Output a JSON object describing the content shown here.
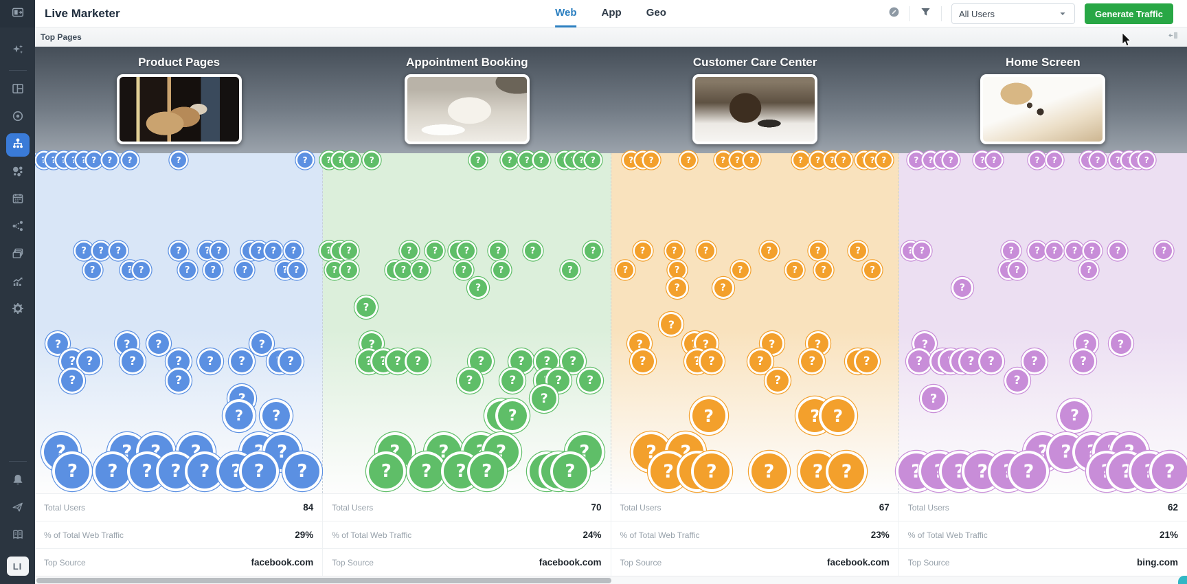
{
  "app": {
    "title": "Live Marketer"
  },
  "header": {
    "tabs": [
      {
        "label": "Web",
        "active": true
      },
      {
        "label": "App",
        "active": false
      },
      {
        "label": "Geo",
        "active": false
      }
    ],
    "tools": [
      {
        "name": "explore",
        "icon": "compass"
      },
      {
        "name": "filter",
        "icon": "funnel"
      }
    ],
    "user_filter": {
      "value": "All Users"
    },
    "generate_button": "Generate Traffic"
  },
  "subheader": {
    "title": "Top Pages"
  },
  "sidebar": {
    "logo_icon": "panel-toggle",
    "top_items": [
      {
        "name": "assistant",
        "icon": "sparkles"
      },
      {
        "name": "divider"
      },
      {
        "name": "dashboard",
        "icon": "dashboard"
      },
      {
        "name": "goals",
        "icon": "target"
      },
      {
        "name": "top-pages",
        "icon": "sitemap",
        "active": true
      },
      {
        "name": "segments",
        "icon": "bubbles"
      },
      {
        "name": "calendar",
        "icon": "calendar"
      },
      {
        "name": "funnels",
        "icon": "flow"
      },
      {
        "name": "reports",
        "icon": "layers"
      },
      {
        "name": "analytics",
        "icon": "chart"
      },
      {
        "name": "settings",
        "icon": "gear"
      }
    ],
    "bottom_items": [
      {
        "name": "divider"
      },
      {
        "name": "notifications",
        "icon": "bell"
      },
      {
        "name": "share",
        "icon": "send"
      },
      {
        "name": "docs",
        "icon": "book"
      }
    ],
    "logo_text": "LI"
  },
  "colors": {
    "accent_blue": "#2b7fc0",
    "button_green": "#28a745"
  },
  "columns": [
    {
      "title": "Product Pages",
      "thumb": "room-puppies",
      "color": "#5b90e2",
      "tint": "#d9e6f7",
      "stats": [
        {
          "label": "Total Users",
          "value": "84"
        },
        {
          "label": "% of Total Web Traffic",
          "value": "29%"
        },
        {
          "label": "Top Source",
          "value": "facebook.com"
        }
      ],
      "bubbles": [
        [
          3,
          10,
          11
        ],
        [
          6.5,
          10,
          11
        ],
        [
          10,
          10,
          11
        ],
        [
          13.5,
          10,
          11
        ],
        [
          17,
          10,
          11
        ],
        [
          20.5,
          10,
          11
        ],
        [
          26,
          10,
          11
        ],
        [
          33,
          10,
          11
        ],
        [
          50,
          10,
          11
        ],
        [
          94,
          10,
          11
        ],
        [
          17,
          142,
          12
        ],
        [
          23,
          142,
          12
        ],
        [
          29,
          142,
          12
        ],
        [
          50,
          142,
          12
        ],
        [
          60,
          142,
          12
        ],
        [
          64,
          142,
          12
        ],
        [
          75,
          142,
          12
        ],
        [
          78,
          142,
          12
        ],
        [
          83,
          142,
          12
        ],
        [
          90,
          142,
          12
        ],
        [
          20,
          170,
          12
        ],
        [
          33,
          170,
          12
        ],
        [
          37,
          170,
          12
        ],
        [
          53,
          170,
          12
        ],
        [
          62,
          170,
          12
        ],
        [
          73,
          170,
          12
        ],
        [
          87,
          170,
          12
        ],
        [
          91,
          170,
          12
        ],
        [
          8,
          277,
          15
        ],
        [
          32,
          277,
          15
        ],
        [
          43,
          277,
          15
        ],
        [
          79,
          277,
          15
        ],
        [
          13,
          303,
          16
        ],
        [
          19,
          303,
          16
        ],
        [
          34,
          303,
          16
        ],
        [
          50,
          303,
          16
        ],
        [
          61,
          303,
          16
        ],
        [
          72,
          303,
          16
        ],
        [
          85,
          303,
          16
        ],
        [
          89,
          303,
          16
        ],
        [
          13,
          331,
          16
        ],
        [
          50,
          331,
          16
        ],
        [
          72,
          357,
          18
        ],
        [
          71,
          382,
          20
        ],
        [
          84,
          382,
          20
        ],
        [
          9,
          435,
          25
        ],
        [
          32,
          435,
          25
        ],
        [
          42,
          435,
          25
        ],
        [
          56,
          435,
          25
        ],
        [
          78,
          435,
          25
        ],
        [
          86,
          435,
          25
        ],
        [
          13,
          463,
          25
        ],
        [
          27,
          463,
          25
        ],
        [
          39,
          463,
          25
        ],
        [
          49,
          463,
          25
        ],
        [
          59,
          463,
          25
        ],
        [
          70,
          463,
          25
        ],
        [
          78,
          463,
          25
        ],
        [
          93,
          463,
          25
        ]
      ]
    },
    {
      "title": "Appointment Booking",
      "thumb": "cat-plate",
      "color": "#5fbe68",
      "tint": "#dcefdb",
      "stats": [
        {
          "label": "Total Users",
          "value": "70"
        },
        {
          "label": "% of Total Web Traffic",
          "value": "24%"
        },
        {
          "label": "Top Source",
          "value": "facebook.com"
        }
      ],
      "bubbles": [
        [
          2,
          10,
          11
        ],
        [
          6,
          10,
          11
        ],
        [
          10,
          10,
          11
        ],
        [
          17,
          10,
          11
        ],
        [
          54,
          10,
          11
        ],
        [
          65,
          10,
          11
        ],
        [
          71,
          10,
          11
        ],
        [
          76,
          10,
          11
        ],
        [
          84,
          10,
          11
        ],
        [
          87,
          10,
          11
        ],
        [
          90,
          10,
          11
        ],
        [
          94,
          10,
          11
        ],
        [
          2,
          142,
          12
        ],
        [
          6,
          142,
          12
        ],
        [
          9,
          142,
          12
        ],
        [
          30,
          142,
          12
        ],
        [
          39,
          142,
          12
        ],
        [
          47,
          142,
          12
        ],
        [
          50,
          142,
          12
        ],
        [
          61,
          142,
          12
        ],
        [
          73,
          142,
          12
        ],
        [
          94,
          142,
          12
        ],
        [
          4,
          170,
          12
        ],
        [
          9,
          170,
          12
        ],
        [
          25,
          170,
          12
        ],
        [
          28,
          170,
          12
        ],
        [
          34,
          170,
          12
        ],
        [
          49,
          170,
          12
        ],
        [
          62,
          170,
          12
        ],
        [
          86,
          170,
          12
        ],
        [
          54,
          196,
          13
        ],
        [
          15,
          224,
          14
        ],
        [
          17,
          277,
          15
        ],
        [
          16,
          303,
          16
        ],
        [
          21,
          303,
          16
        ],
        [
          26,
          303,
          16
        ],
        [
          33,
          303,
          16
        ],
        [
          55,
          303,
          16
        ],
        [
          69,
          303,
          16
        ],
        [
          78,
          303,
          16
        ],
        [
          87,
          303,
          16
        ],
        [
          51,
          331,
          16
        ],
        [
          66,
          331,
          16
        ],
        [
          78,
          331,
          16
        ],
        [
          82,
          331,
          16
        ],
        [
          93,
          331,
          16
        ],
        [
          77,
          357,
          18
        ],
        [
          62,
          382,
          21
        ],
        [
          66,
          382,
          21
        ],
        [
          25,
          435,
          25
        ],
        [
          42,
          435,
          25
        ],
        [
          55,
          435,
          25
        ],
        [
          62,
          435,
          25
        ],
        [
          91,
          435,
          25
        ],
        [
          22,
          463,
          25
        ],
        [
          36,
          463,
          25
        ],
        [
          48,
          463,
          25
        ],
        [
          57,
          463,
          25
        ],
        [
          78,
          463,
          25
        ],
        [
          82,
          463,
          25
        ],
        [
          86,
          463,
          25
        ]
      ]
    },
    {
      "title": "Customer Care Center",
      "thumb": "dog-tablet",
      "color": "#f3a02c",
      "tint": "#f9e2bd",
      "stats": [
        {
          "label": "Total Users",
          "value": "67"
        },
        {
          "label": "% of Total Web Traffic",
          "value": "23%"
        },
        {
          "label": "Top Source",
          "value": "facebook.com"
        }
      ],
      "bubbles": [
        [
          7,
          10,
          11
        ],
        [
          11,
          10,
          11
        ],
        [
          14,
          10,
          11
        ],
        [
          27,
          10,
          11
        ],
        [
          39,
          10,
          11
        ],
        [
          44,
          10,
          11
        ],
        [
          49,
          10,
          11
        ],
        [
          66,
          10,
          11
        ],
        [
          72,
          10,
          11
        ],
        [
          77,
          10,
          11
        ],
        [
          81,
          10,
          11
        ],
        [
          88,
          10,
          11
        ],
        [
          91,
          10,
          11
        ],
        [
          95,
          10,
          11
        ],
        [
          11,
          142,
          12
        ],
        [
          22,
          142,
          12
        ],
        [
          33,
          142,
          12
        ],
        [
          55,
          142,
          12
        ],
        [
          72,
          142,
          12
        ],
        [
          86,
          142,
          12
        ],
        [
          5,
          170,
          12
        ],
        [
          23,
          170,
          12
        ],
        [
          45,
          170,
          12
        ],
        [
          64,
          170,
          12
        ],
        [
          74,
          170,
          12
        ],
        [
          91,
          170,
          12
        ],
        [
          23,
          196,
          13
        ],
        [
          39,
          196,
          13
        ],
        [
          21,
          249,
          15
        ],
        [
          10,
          277,
          15
        ],
        [
          29,
          277,
          15
        ],
        [
          33,
          277,
          15
        ],
        [
          56,
          277,
          15
        ],
        [
          72,
          277,
          15
        ],
        [
          11,
          303,
          16
        ],
        [
          30,
          303,
          16
        ],
        [
          35,
          303,
          16
        ],
        [
          52,
          303,
          16
        ],
        [
          70,
          303,
          16
        ],
        [
          86,
          303,
          16
        ],
        [
          89,
          303,
          16
        ],
        [
          58,
          331,
          16
        ],
        [
          34,
          382,
          24
        ],
        [
          71,
          382,
          24
        ],
        [
          79,
          382,
          24
        ],
        [
          14,
          435,
          26
        ],
        [
          26,
          435,
          26
        ],
        [
          20,
          463,
          26
        ],
        [
          30,
          463,
          26
        ],
        [
          35,
          463,
          26
        ],
        [
          55,
          463,
          26
        ],
        [
          72,
          463,
          26
        ],
        [
          82,
          463,
          26
        ]
      ]
    },
    {
      "title": "Home Screen",
      "thumb": "white-puppy",
      "color": "#c88dd8",
      "tint": "#ecdff2",
      "stats": [
        {
          "label": "Total Users",
          "value": "62"
        },
        {
          "label": "% of Total Web Traffic",
          "value": "21%"
        },
        {
          "label": "Top Source",
          "value": "bing.com"
        }
      ],
      "bubbles": [
        [
          6,
          10,
          11
        ],
        [
          11,
          10,
          11
        ],
        [
          15,
          10,
          11
        ],
        [
          18,
          10,
          11
        ],
        [
          29,
          10,
          11
        ],
        [
          33,
          10,
          11
        ],
        [
          48,
          10,
          11
        ],
        [
          54,
          10,
          11
        ],
        [
          66,
          10,
          11
        ],
        [
          69,
          10,
          11
        ],
        [
          76,
          10,
          11
        ],
        [
          80,
          10,
          11
        ],
        [
          83,
          10,
          11
        ],
        [
          86,
          10,
          11
        ],
        [
          4,
          142,
          12
        ],
        [
          8,
          142,
          12
        ],
        [
          39,
          142,
          12
        ],
        [
          48,
          142,
          12
        ],
        [
          54,
          142,
          12
        ],
        [
          61,
          142,
          12
        ],
        [
          67,
          142,
          12
        ],
        [
          76,
          142,
          12
        ],
        [
          92,
          142,
          12
        ],
        [
          38,
          170,
          12
        ],
        [
          41,
          170,
          12
        ],
        [
          66,
          170,
          12
        ],
        [
          22,
          196,
          13
        ],
        [
          9,
          277,
          15
        ],
        [
          65,
          277,
          15
        ],
        [
          77,
          277,
          15
        ],
        [
          7,
          303,
          16
        ],
        [
          15,
          303,
          16
        ],
        [
          18,
          303,
          16
        ],
        [
          22,
          303,
          16
        ],
        [
          25,
          303,
          16
        ],
        [
          32,
          303,
          16
        ],
        [
          47,
          303,
          16
        ],
        [
          64,
          303,
          16
        ],
        [
          41,
          331,
          16
        ],
        [
          12,
          357,
          17
        ],
        [
          61,
          382,
          21
        ],
        [
          50,
          435,
          25
        ],
        [
          58,
          435,
          25
        ],
        [
          67,
          435,
          25
        ],
        [
          74,
          435,
          25
        ],
        [
          80,
          435,
          25
        ],
        [
          6,
          463,
          26
        ],
        [
          14,
          463,
          26
        ],
        [
          21,
          463,
          26
        ],
        [
          29,
          463,
          26
        ],
        [
          38,
          463,
          26
        ],
        [
          45,
          463,
          26
        ],
        [
          72,
          463,
          26
        ],
        [
          79,
          463,
          26
        ],
        [
          87,
          463,
          26
        ],
        [
          94,
          463,
          26
        ]
      ]
    }
  ]
}
